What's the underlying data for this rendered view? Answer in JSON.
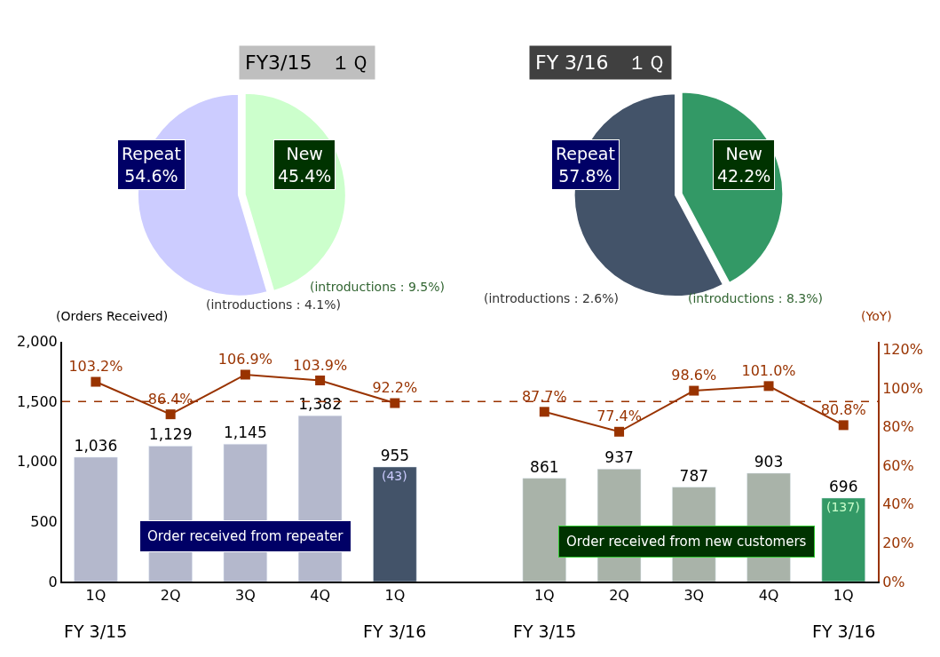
{
  "chart_data": [
    {
      "type": "pie",
      "title": "FY3/15　１Ｑ",
      "categories": [
        "Repeat",
        "New"
      ],
      "values": [
        54.6,
        45.4
      ],
      "colors": [
        "#ccccff",
        "#ccffcc"
      ],
      "value_labels": [
        "54.6%",
        "45.4%"
      ],
      "annotations": [
        "(introductions : 4.1%)",
        "(introductions : 9.5%)"
      ]
    },
    {
      "type": "pie",
      "title": "FY 3/16　１Ｑ",
      "categories": [
        "Repeat",
        "New"
      ],
      "values": [
        57.8,
        42.2
      ],
      "colors": [
        "#435369",
        "#339966"
      ],
      "value_labels": [
        "57.8%",
        "42.2%"
      ],
      "annotations": [
        "(introductions : 2.6%)",
        "(introductions : 8.3%)"
      ]
    },
    {
      "type": "bar",
      "ylabel": "(Orders Received)",
      "y2label": "(YoY)",
      "categories": [
        "1Q",
        "2Q",
        "3Q",
        "4Q",
        "1Q",
        null,
        "1Q",
        "2Q",
        "3Q",
        "4Q",
        "1Q"
      ],
      "series": [
        {
          "type": "bar",
          "colors": [
            "#b4b8cc",
            "#b4b8cc",
            "#b4b8cc",
            "#b4b8cc",
            "#435369",
            null,
            "#a9b3a9",
            "#a9b3a9",
            "#a9b3a9",
            "#a9b3a9",
            "#339966"
          ],
          "values": [
            1036,
            1129,
            1145,
            1382,
            955,
            null,
            861,
            937,
            787,
            903,
            696
          ],
          "value_labels": [
            "1,036",
            "1,129",
            "1,145",
            "1,382",
            "955",
            null,
            "861",
            "937",
            "787",
            "903",
            "696"
          ]
        },
        {
          "type": "line",
          "axis": "y2",
          "color": "#993300",
          "marker": "square",
          "values": [
            103.2,
            86.4,
            106.9,
            103.9,
            92.2,
            null,
            87.7,
            77.4,
            98.6,
            101.0,
            80.8
          ],
          "value_labels": [
            "103.2%",
            "86.4%",
            "106.9%",
            "103.9%",
            "92.2%",
            null,
            "87.7%",
            "77.4%",
            "98.6%",
            "101.0%",
            "80.8%"
          ]
        }
      ],
      "ylim": [
        0,
        2000
      ],
      "yticks": [
        0,
        500,
        {
          "value": 1000,
          "label": "1,000"
        },
        {
          "value": 1500,
          "label": "1,500"
        },
        {
          "value": 2000,
          "label": "2,000"
        }
      ],
      "y2lim": [
        0,
        124
      ],
      "y2ticks": [
        {
          "value": 0,
          "label": "0%"
        },
        {
          "value": 20,
          "label": "20%"
        },
        {
          "value": 40,
          "label": "40%"
        },
        {
          "value": 60,
          "label": "60%"
        },
        {
          "value": 80,
          "label": "80%"
        },
        {
          "value": 100,
          "label": "100%"
        },
        {
          "value": 120,
          "label": "120%"
        }
      ],
      "ref_lines": [
        {
          "axis": "y",
          "value": 1500,
          "color": "#993300",
          "line_style": "dashed"
        }
      ],
      "annotations": [
        "Order received from repeater",
        "Order received from new customers",
        "FY 3/15",
        "FY 3/16",
        "FY 3/15",
        "FY 3/16",
        "(43)",
        "(137)"
      ]
    }
  ]
}
